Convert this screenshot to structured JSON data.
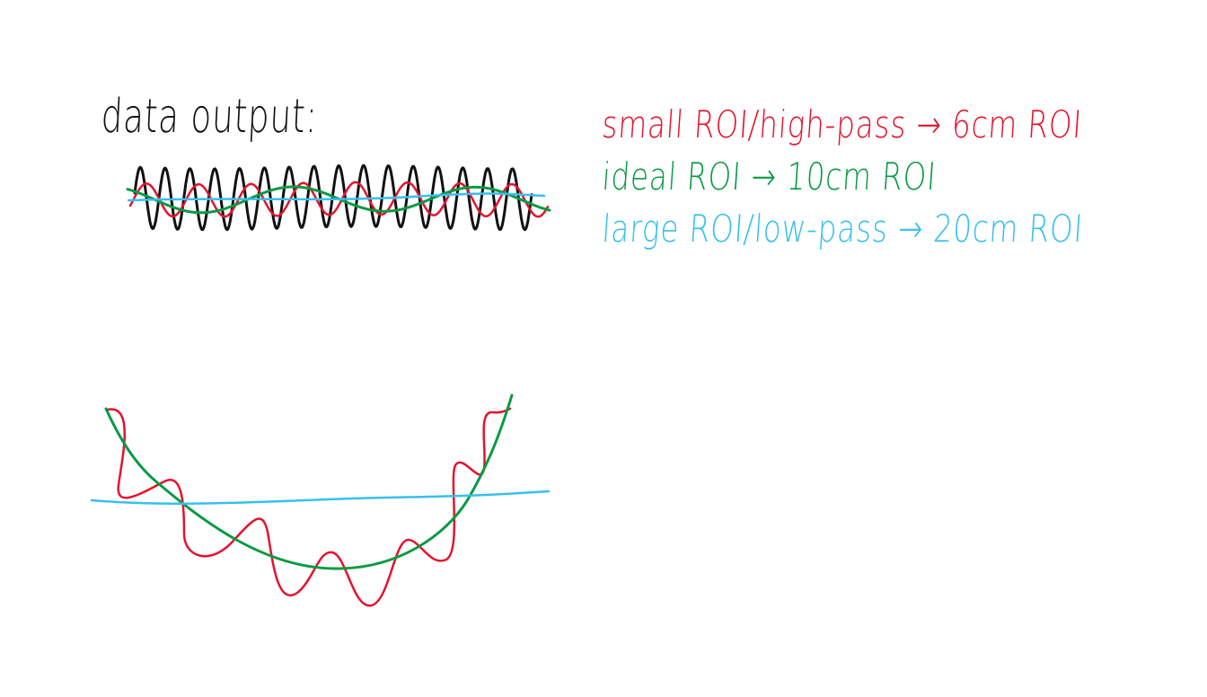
{
  "colors": {
    "raw": "#111111",
    "small": "#e3142d",
    "ideal": "#0a9a44",
    "large": "#37c0ec"
  },
  "labels": {
    "title": "data output:",
    "small_roi": "small ROI/high-pass → 6cm ROI",
    "ideal_roi": "ideal ROI → 10cm ROI",
    "large_roi": "large ROI/low-pass → 20cm ROI"
  }
}
